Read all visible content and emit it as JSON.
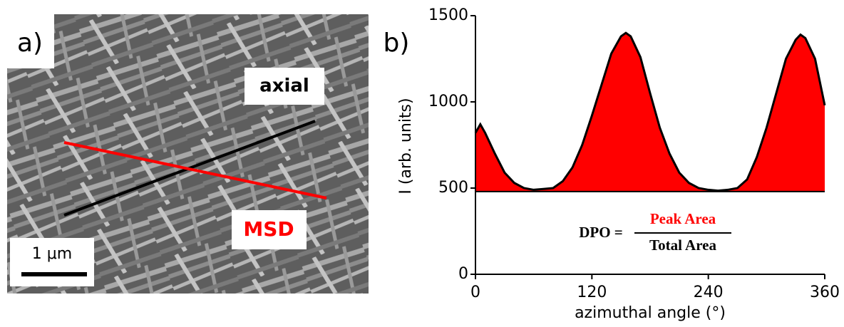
{
  "panel_a": {
    "label": "a)",
    "axial_label": "axial",
    "msd_label": "MSD",
    "scale_bar": "1 μm"
  },
  "chart_data": {
    "type": "area",
    "panel_label": "b)",
    "x_label": "azimuthal angle (°)",
    "y_label": "I  (arb. units)",
    "x": [
      0,
      5,
      10,
      20,
      30,
      40,
      50,
      60,
      70,
      80,
      90,
      100,
      110,
      120,
      130,
      140,
      150,
      155,
      160,
      170,
      180,
      190,
      200,
      210,
      220,
      230,
      240,
      250,
      260,
      270,
      280,
      290,
      300,
      310,
      320,
      330,
      335,
      340,
      350,
      360
    ],
    "values": [
      820,
      870,
      820,
      700,
      590,
      530,
      500,
      490,
      495,
      500,
      540,
      620,
      750,
      920,
      1100,
      1280,
      1380,
      1400,
      1380,
      1260,
      1050,
      850,
      700,
      590,
      530,
      500,
      490,
      485,
      490,
      500,
      550,
      680,
      850,
      1050,
      1250,
      1360,
      1390,
      1370,
      1250,
      980
    ],
    "fill_baseline": 480,
    "color": "#ff0000",
    "line_color": "#000000",
    "xlim": [
      0,
      360
    ],
    "xticks": [
      0,
      120,
      240,
      360
    ],
    "ylim": [
      0,
      1500
    ],
    "yticks": [
      0,
      500,
      1000,
      1500
    ],
    "equation": {
      "lhs": "DPO =",
      "numerator": "Peak Area",
      "denominator": "Total Area",
      "numerator_color": "#ff0000"
    }
  }
}
